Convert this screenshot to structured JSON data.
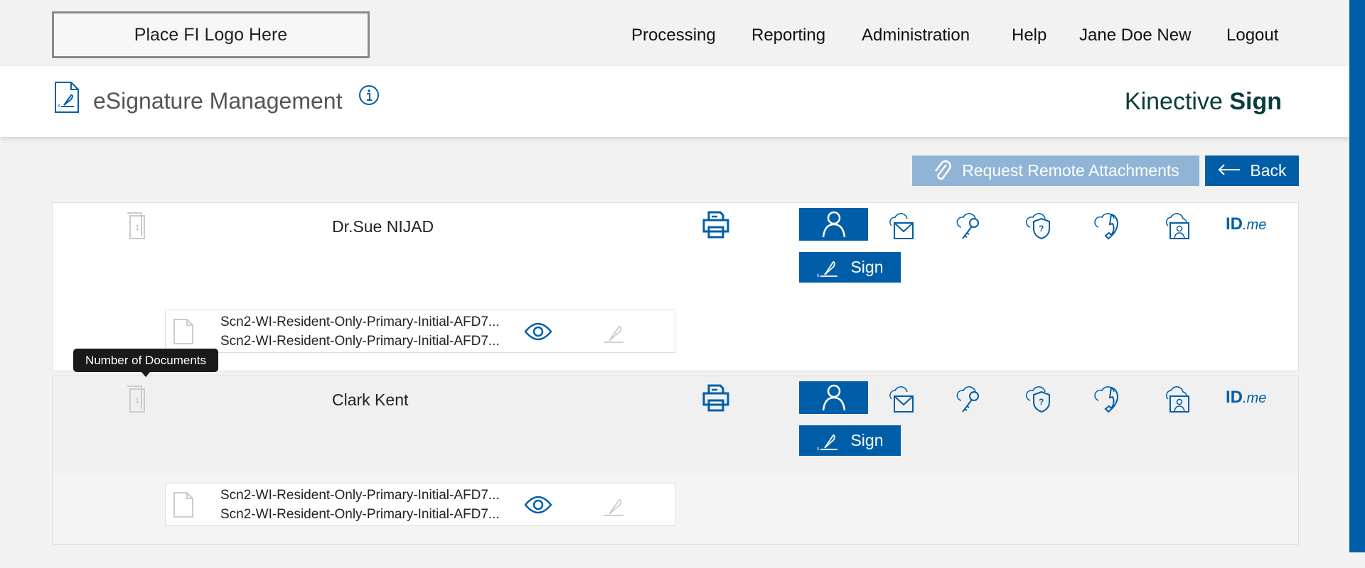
{
  "header": {
    "logo_text": "Place FI Logo Here",
    "nav": [
      "Processing",
      "Reporting",
      "Administration",
      "Help",
      "Jane Doe New",
      "Logout"
    ]
  },
  "title_bar": {
    "title": "eSignature Management",
    "brand_light": "Kinective",
    "brand_bold": "Sign"
  },
  "actions": {
    "request_label": "Request Remote Attachments",
    "back_label": "Back"
  },
  "tooltip": "Number of Documents",
  "colors": {
    "accent": "#005ea8",
    "request_disabled": "#8fb4d6"
  },
  "signers": [
    {
      "name": "Dr.Sue NIJAD",
      "doc_count": "1",
      "sign_label": "Sign",
      "id_label": "ID",
      "id_suffix": ".me",
      "docs": [
        "Scn2-WI-Resident-Only-Primary-Initial-AFD7...",
        "Scn2-WI-Resident-Only-Primary-Initial-AFD7..."
      ]
    },
    {
      "name": "Clark Kent",
      "doc_count": "1",
      "sign_label": "Sign",
      "id_label": "ID",
      "id_suffix": ".me",
      "docs": [
        "Scn2-WI-Resident-Only-Primary-Initial-AFD7...",
        "Scn2-WI-Resident-Only-Primary-Initial-AFD7..."
      ]
    }
  ]
}
